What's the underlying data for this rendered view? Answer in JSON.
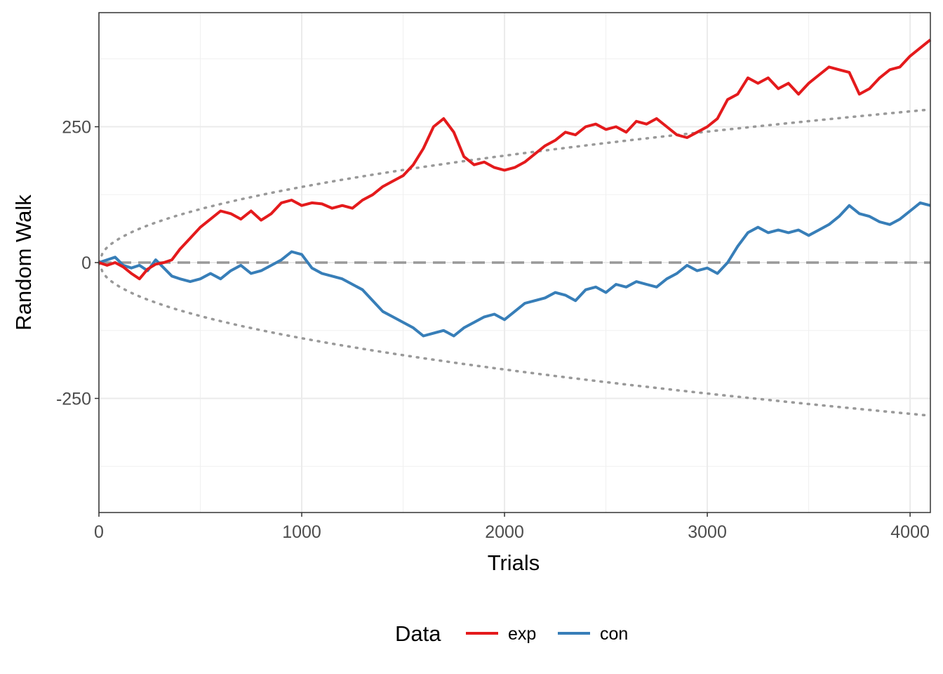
{
  "chart_data": {
    "type": "line",
    "xlabel": "Trials",
    "ylabel": "Random Walk",
    "xlim": [
      0,
      4100
    ],
    "ylim": [
      -460,
      460
    ],
    "x_ticks": [
      0,
      1000,
      2000,
      3000,
      4000
    ],
    "x_tick_labels": [
      "0",
      "1000",
      "2000",
      "3000",
      "4000"
    ],
    "y_ticks": [
      -250,
      0,
      250
    ],
    "y_tick_labels": [
      "-250",
      "0",
      "250"
    ],
    "grid": true,
    "legend": {
      "title": "Data",
      "position": "bottom"
    },
    "reference_lines": [
      {
        "kind": "horizontal-dashed",
        "y": 0,
        "color": "#999999"
      },
      {
        "kind": "bound-dotted",
        "formula": "y = +/- 4.4 * sqrt(x)",
        "color": "#999999"
      }
    ],
    "series": [
      {
        "name": "exp",
        "color": "#E41A1C",
        "x": [
          0,
          40,
          80,
          120,
          160,
          200,
          240,
          280,
          320,
          360,
          400,
          450,
          500,
          550,
          600,
          650,
          700,
          750,
          800,
          850,
          900,
          950,
          1000,
          1050,
          1100,
          1150,
          1200,
          1250,
          1300,
          1350,
          1400,
          1450,
          1500,
          1550,
          1600,
          1650,
          1700,
          1750,
          1800,
          1850,
          1900,
          1950,
          2000,
          2050,
          2100,
          2150,
          2200,
          2250,
          2300,
          2350,
          2400,
          2450,
          2500,
          2550,
          2600,
          2650,
          2700,
          2750,
          2800,
          2850,
          2900,
          2950,
          3000,
          3050,
          3100,
          3150,
          3200,
          3250,
          3300,
          3350,
          3400,
          3450,
          3500,
          3550,
          3600,
          3650,
          3700,
          3750,
          3800,
          3850,
          3900,
          3950,
          4000,
          4050,
          4100
        ],
        "values": [
          0,
          -5,
          0,
          -8,
          -20,
          -30,
          -12,
          -3,
          0,
          5,
          25,
          45,
          65,
          80,
          95,
          90,
          80,
          95,
          78,
          90,
          110,
          115,
          105,
          110,
          108,
          100,
          105,
          100,
          115,
          125,
          140,
          150,
          160,
          180,
          210,
          250,
          265,
          240,
          195,
          180,
          185,
          175,
          170,
          175,
          185,
          200,
          215,
          225,
          240,
          235,
          250,
          255,
          245,
          250,
          240,
          260,
          255,
          265,
          250,
          235,
          230,
          240,
          250,
          265,
          300,
          310,
          340,
          330,
          340,
          320,
          330,
          310,
          330,
          345,
          360,
          355,
          350,
          310,
          320,
          340,
          355,
          360,
          380,
          395,
          410
        ]
      },
      {
        "name": "con",
        "color": "#377EB8",
        "x": [
          0,
          40,
          80,
          120,
          160,
          200,
          240,
          280,
          320,
          360,
          400,
          450,
          500,
          550,
          600,
          650,
          700,
          750,
          800,
          850,
          900,
          950,
          1000,
          1050,
          1100,
          1150,
          1200,
          1250,
          1300,
          1350,
          1400,
          1450,
          1500,
          1550,
          1600,
          1650,
          1700,
          1750,
          1800,
          1850,
          1900,
          1950,
          2000,
          2050,
          2100,
          2150,
          2200,
          2250,
          2300,
          2350,
          2400,
          2450,
          2500,
          2550,
          2600,
          2650,
          2700,
          2750,
          2800,
          2850,
          2900,
          2950,
          3000,
          3050,
          3100,
          3150,
          3200,
          3250,
          3300,
          3350,
          3400,
          3450,
          3500,
          3550,
          3600,
          3650,
          3700,
          3750,
          3800,
          3850,
          3900,
          3950,
          4000,
          4050,
          4100
        ],
        "values": [
          0,
          5,
          10,
          -5,
          -10,
          -5,
          -15,
          5,
          -10,
          -25,
          -30,
          -35,
          -30,
          -20,
          -30,
          -15,
          -5,
          -20,
          -15,
          -5,
          5,
          20,
          15,
          -10,
          -20,
          -25,
          -30,
          -40,
          -50,
          -70,
          -90,
          -100,
          -110,
          -120,
          -135,
          -130,
          -125,
          -135,
          -120,
          -110,
          -100,
          -95,
          -105,
          -90,
          -75,
          -70,
          -65,
          -55,
          -60,
          -70,
          -50,
          -45,
          -55,
          -40,
          -45,
          -35,
          -40,
          -45,
          -30,
          -20,
          -5,
          -15,
          -10,
          -20,
          0,
          30,
          55,
          65,
          55,
          60,
          55,
          60,
          50,
          60,
          70,
          85,
          105,
          90,
          85,
          75,
          70,
          80,
          95,
          110,
          105
        ]
      }
    ]
  }
}
